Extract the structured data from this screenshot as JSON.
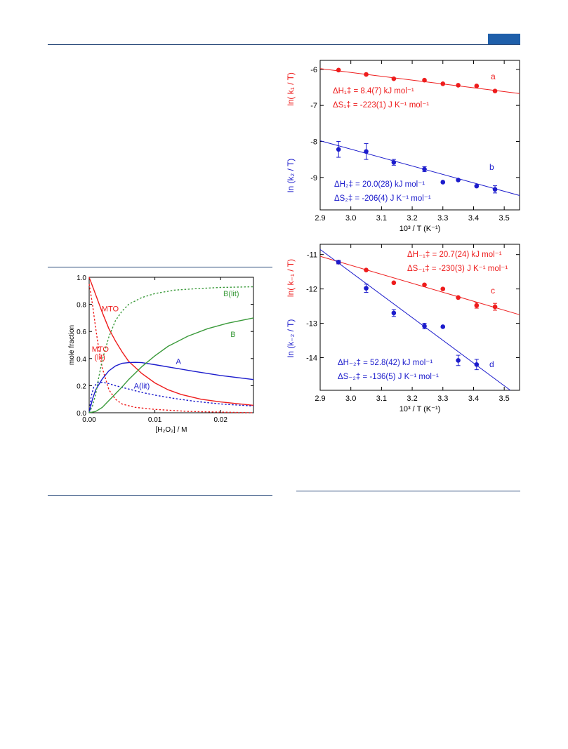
{
  "colors": {
    "red": "#ee1c1c",
    "blue": "#1c1ccc",
    "green": "#3a9a3a",
    "header_rule": "#2a4a7a",
    "tab": "#1f5faa"
  },
  "chart_data": [
    {
      "id": "upper",
      "type": "scatter",
      "xlabel": "10³ / T (K⁻¹)",
      "xlim": [
        2.9,
        3.55
      ],
      "xticks": [
        "2.9",
        "3.0",
        "3.1",
        "3.2",
        "3.3",
        "3.4",
        "3.5"
      ],
      "ylim": [
        -9.9,
        -5.75
      ],
      "yticks": [
        "-6",
        "-7",
        "-8",
        "-9"
      ],
      "grid": false,
      "series": [
        {
          "color": "#ee1c1c",
          "ylabel": "ln( k₁ / T)",
          "letter": "a",
          "points": [
            [
              2.96,
              -6.02
            ],
            [
              3.05,
              -6.14
            ],
            [
              3.14,
              -6.26
            ],
            [
              3.24,
              -6.3
            ],
            [
              3.3,
              -6.4
            ],
            [
              3.35,
              -6.44
            ],
            [
              3.41,
              -6.46
            ],
            [
              3.47,
              -6.6
            ]
          ],
          "fit": [
            [
              2.9,
              -5.98
            ],
            [
              3.55,
              -6.67
            ]
          ],
          "lines": [
            "ΔH₁‡ = 8.4(7) kJ mol⁻¹",
            "ΔS₁‡ = -223(1) J K⁻¹ mol⁻¹"
          ]
        },
        {
          "color": "#1c1ccc",
          "ylabel": "ln (k₂ / T)",
          "letter": "b",
          "points": [
            [
              2.96,
              -8.22
            ],
            [
              3.05,
              -8.28
            ],
            [
              3.14,
              -8.58
            ],
            [
              3.24,
              -8.77
            ],
            [
              3.3,
              -9.13
            ],
            [
              3.35,
              -9.07
            ],
            [
              3.41,
              -9.24
            ],
            [
              3.47,
              -9.33
            ]
          ],
          "err": [
            0.22,
            0.22,
            0.08,
            0.07,
            0,
            0,
            0,
            0.1
          ],
          "fit": [
            [
              2.9,
              -7.98
            ],
            [
              3.55,
              -9.5
            ]
          ],
          "lines": [
            "ΔH₂‡ = 20.0(28) kJ mol⁻¹",
            "ΔS₂‡ = -206(4) J K⁻¹ mol⁻¹"
          ]
        }
      ]
    },
    {
      "id": "lower",
      "type": "scatter",
      "xlabel": "10³ / T (K⁻¹)",
      "xlim": [
        2.9,
        3.55
      ],
      "xticks": [
        "2.9",
        "3.0",
        "3.1",
        "3.2",
        "3.3",
        "3.4",
        "3.5"
      ],
      "ylim": [
        -14.95,
        -10.7
      ],
      "yticks": [
        "-11",
        "-12",
        "-13",
        "-14"
      ],
      "grid": false,
      "series": [
        {
          "color": "#ee1c1c",
          "ylabel": "ln( k₋₁ / T)",
          "letter": "c",
          "points": [
            [
              2.96,
              -11.22
            ],
            [
              3.05,
              -11.45
            ],
            [
              3.14,
              -11.82
            ],
            [
              3.24,
              -11.88
            ],
            [
              3.3,
              -12.0
            ],
            [
              3.35,
              -12.25
            ],
            [
              3.41,
              -12.48
            ],
            [
              3.47,
              -12.52
            ]
          ],
          "err": [
            0.05,
            0,
            0,
            0,
            0,
            0,
            0.08,
            0.1
          ],
          "fit": [
            [
              2.9,
              -11.05
            ],
            [
              3.55,
              -12.75
            ]
          ],
          "lines": [
            "ΔH₋₁‡ = 20.7(24) kJ mol⁻¹",
            "ΔS₋₁‡ = -230(3) J K⁻¹ mol⁻¹"
          ]
        },
        {
          "color": "#1c1ccc",
          "ylabel": "ln (k₋₂ / T)",
          "letter": "d",
          "points": [
            [
              2.96,
              -11.22
            ],
            [
              3.05,
              -11.98
            ],
            [
              3.14,
              -12.7
            ],
            [
              3.24,
              -13.08
            ],
            [
              3.3,
              -13.1
            ],
            [
              3.35,
              -14.08
            ],
            [
              3.41,
              -14.2
            ]
          ],
          "err": [
            0.05,
            0.12,
            0.1,
            0.08,
            0,
            0.15,
            0.15
          ],
          "fit": [
            [
              2.9,
              -10.85
            ],
            [
              3.52,
              -14.95
            ]
          ],
          "lines": [
            "ΔH₋₂‡ = 52.8(42) kJ mol⁻¹",
            "ΔS₋₂‡ = -136(5) J K⁻¹ mol⁻¹"
          ]
        }
      ]
    },
    {
      "id": "mole",
      "type": "line",
      "xlabel": "[H₂O₂] / M",
      "ylabel": "mole fraction",
      "xlim": [
        0,
        0.025
      ],
      "xticks": [
        [
          0,
          "0.00"
        ],
        [
          0.01,
          "0.01"
        ],
        [
          0.02,
          "0.02"
        ]
      ],
      "ylim": [
        0,
        1.0
      ],
      "yticks": [
        [
          0,
          "0.0"
        ],
        [
          0.2,
          "0.2"
        ],
        [
          0.4,
          "0.4"
        ],
        [
          0.6,
          "0.6"
        ],
        [
          0.8,
          "0.8"
        ],
        [
          1.0,
          "1.0"
        ]
      ],
      "grid": false,
      "series": [
        {
          "name": "MTO",
          "color": "#ee1c1c",
          "dashed": false,
          "points": [
            [
              0,
              1.0
            ],
            [
              0.001,
              0.87
            ],
            [
              0.002,
              0.74
            ],
            [
              0.003,
              0.62
            ],
            [
              0.004,
              0.53
            ],
            [
              0.005,
              0.45
            ],
            [
              0.006,
              0.38
            ],
            [
              0.008,
              0.29
            ],
            [
              0.01,
              0.22
            ],
            [
              0.012,
              0.17
            ],
            [
              0.014,
              0.135
            ],
            [
              0.017,
              0.1
            ],
            [
              0.02,
              0.08
            ],
            [
              0.025,
              0.055
            ]
          ]
        },
        {
          "name": "MTO (lit)",
          "color": "#ee1c1c",
          "dashed": true,
          "points": [
            [
              0,
              0.95
            ],
            [
              0.0005,
              0.8
            ],
            [
              0.001,
              0.62
            ],
            [
              0.0015,
              0.46
            ],
            [
              0.002,
              0.33
            ],
            [
              0.003,
              0.17
            ],
            [
              0.004,
              0.1
            ],
            [
              0.005,
              0.065
            ],
            [
              0.007,
              0.04
            ],
            [
              0.01,
              0.025
            ],
            [
              0.015,
              0.01
            ],
            [
              0.025,
              0.0
            ]
          ]
        },
        {
          "name": "A",
          "color": "#1c1ccc",
          "dashed": false,
          "points": [
            [
              0,
              0
            ],
            [
              0.0005,
              0.1
            ],
            [
              0.001,
              0.17
            ],
            [
              0.002,
              0.25
            ],
            [
              0.003,
              0.31
            ],
            [
              0.004,
              0.345
            ],
            [
              0.005,
              0.365
            ],
            [
              0.006,
              0.37
            ],
            [
              0.007,
              0.372
            ],
            [
              0.008,
              0.37
            ],
            [
              0.01,
              0.355
            ],
            [
              0.013,
              0.33
            ],
            [
              0.016,
              0.305
            ],
            [
              0.02,
              0.275
            ],
            [
              0.025,
              0.245
            ]
          ]
        },
        {
          "name": "A(lit)",
          "color": "#1c1ccc",
          "dashed": true,
          "points": [
            [
              0,
              0
            ],
            [
              0.0003,
              0.12
            ],
            [
              0.0007,
              0.19
            ],
            [
              0.0012,
              0.22
            ],
            [
              0.002,
              0.225
            ],
            [
              0.003,
              0.215
            ],
            [
              0.004,
              0.2
            ],
            [
              0.006,
              0.175
            ],
            [
              0.008,
              0.15
            ],
            [
              0.01,
              0.13
            ],
            [
              0.013,
              0.105
            ],
            [
              0.016,
              0.085
            ],
            [
              0.02,
              0.065
            ],
            [
              0.025,
              0.05
            ]
          ]
        },
        {
          "name": "B",
          "color": "#3a9a3a",
          "dashed": false,
          "points": [
            [
              0,
              0
            ],
            [
              0.001,
              0.01
            ],
            [
              0.002,
              0.04
            ],
            [
              0.003,
              0.09
            ],
            [
              0.004,
              0.14
            ],
            [
              0.005,
              0.19
            ],
            [
              0.006,
              0.245
            ],
            [
              0.008,
              0.34
            ],
            [
              0.01,
              0.42
            ],
            [
              0.012,
              0.49
            ],
            [
              0.015,
              0.565
            ],
            [
              0.018,
              0.62
            ],
            [
              0.021,
              0.66
            ],
            [
              0.025,
              0.7
            ]
          ]
        },
        {
          "name": "B(lit)",
          "color": "#3a9a3a",
          "dashed": true,
          "points": [
            [
              0,
              0
            ],
            [
              0.0005,
              0.05
            ],
            [
              0.001,
              0.14
            ],
            [
              0.0015,
              0.27
            ],
            [
              0.002,
              0.39
            ],
            [
              0.003,
              0.56
            ],
            [
              0.004,
              0.68
            ],
            [
              0.005,
              0.75
            ],
            [
              0.006,
              0.8
            ],
            [
              0.008,
              0.85
            ],
            [
              0.01,
              0.88
            ],
            [
              0.013,
              0.905
            ],
            [
              0.016,
              0.915
            ],
            [
              0.02,
              0.925
            ],
            [
              0.025,
              0.93
            ]
          ]
        }
      ],
      "labels": [
        {
          "text": "MTO",
          "color": "#ee1c1c",
          "x": 0.0019,
          "y": 0.75
        },
        {
          "text": "MTO",
          "color": "#ee1c1c",
          "x": 0.0004,
          "y": 0.45
        },
        {
          "text": "(lit)",
          "color": "#ee1c1c",
          "x": 0.0008,
          "y": 0.39
        },
        {
          "text": "A",
          "color": "#1c1ccc",
          "x": 0.0132,
          "y": 0.36
        },
        {
          "text": "A(lit)",
          "color": "#1c1ccc",
          "x": 0.0068,
          "y": 0.18
        },
        {
          "text": "B",
          "color": "#3a9a3a",
          "x": 0.0215,
          "y": 0.56
        },
        {
          "text": "B(lit)",
          "color": "#3a9a3a",
          "x": 0.0204,
          "y": 0.86
        }
      ]
    }
  ]
}
